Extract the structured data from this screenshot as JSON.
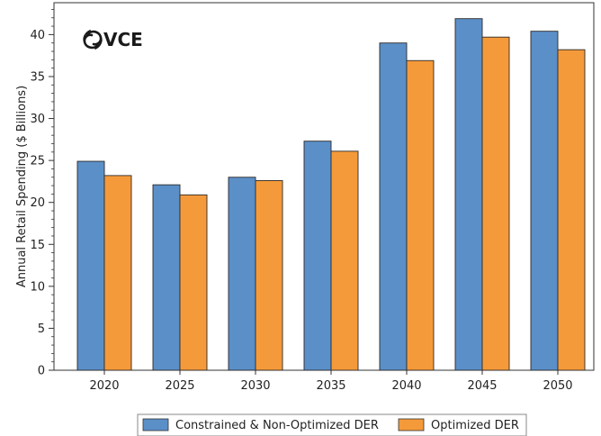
{
  "chart_data": {
    "type": "bar",
    "title": "",
    "xlabel": "",
    "ylabel": "Annual Retail Spending ($ Billions)",
    "categories": [
      "2020",
      "2025",
      "2030",
      "2035",
      "2040",
      "2045",
      "2050"
    ],
    "series": [
      {
        "name": "Constrained & Non-Optimized DER",
        "color": "#5b8fc8",
        "values": [
          24.9,
          22.1,
          23.0,
          27.3,
          39.0,
          41.9,
          40.4
        ]
      },
      {
        "name": "Optimized DER",
        "color": "#f59a3a",
        "values": [
          23.2,
          20.9,
          22.6,
          26.1,
          36.9,
          39.7,
          38.2
        ]
      }
    ],
    "ylim": [
      0,
      43.8
    ],
    "yticks": [
      0,
      5,
      10,
      15,
      20,
      25,
      30,
      35,
      40
    ],
    "grid": false,
    "legend_position": "bottom"
  },
  "logo": {
    "text": "VCE",
    "icon": "swirl-logo-icon"
  }
}
